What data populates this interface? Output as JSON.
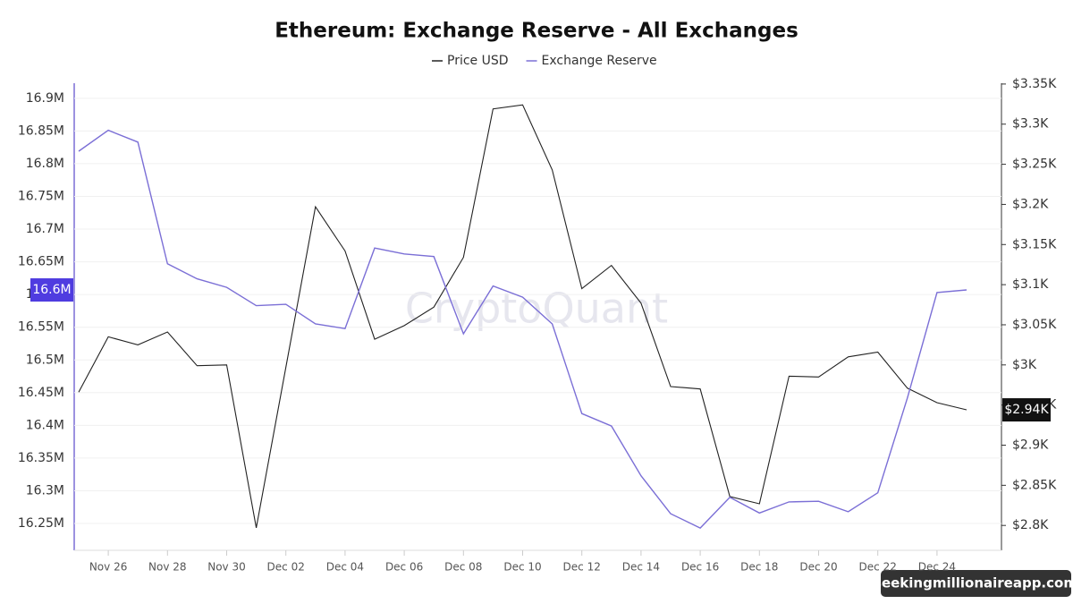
{
  "chart_data": {
    "type": "line",
    "title": "Ethereum: Exchange Reserve - All Exchanges",
    "watermark": "CryptoQuant",
    "categories": [
      null,
      "Nov 26",
      null,
      "Nov 28",
      null,
      "Nov 30",
      null,
      "Dec 02",
      null,
      "Dec 04",
      null,
      "Dec 06",
      null,
      "Dec 08",
      null,
      "Dec 10",
      null,
      "Dec 12",
      null,
      "Dec 14",
      null,
      "Dec 16",
      null,
      "Dec 18",
      null,
      "Dec 20",
      null,
      "Dec 22",
      null,
      "Dec 24",
      null
    ],
    "series": [
      {
        "name": "Price USD",
        "color": "#222222",
        "axis": "y2",
        "last_label": "$2.94K",
        "values": [
          2966,
          3035,
          3025,
          3041,
          2999,
          3000,
          2797,
          2997,
          3197,
          3142,
          3032,
          3049,
          3072,
          3134,
          3319,
          3324,
          3243,
          3095,
          3124,
          3077,
          2973,
          2970,
          2836,
          2827,
          2986,
          2985,
          3010,
          3016,
          2971,
          2953,
          2944
        ]
      },
      {
        "name": "Exchange Reserve",
        "color": "#7b6fd6",
        "last_label": "16.6M",
        "values": [
          16819000,
          16851000,
          16833000,
          16647000,
          16624000,
          16611000,
          16583000,
          16585000,
          16555000,
          16548000,
          16671000,
          16662000,
          16658000,
          16540000,
          16613000,
          16596000,
          16555000,
          16418000,
          16399000,
          16323000,
          16265000,
          16243000,
          16290000,
          16266000,
          16283000,
          16284000,
          16268000,
          16297000,
          16442000,
          16603000,
          16607000
        ]
      }
    ],
    "ylim": [
      16209000,
      16923000
    ],
    "yticks": [
      {
        "value": 16250000,
        "label": "16.25M"
      },
      {
        "value": 16300000,
        "label": "16.3M"
      },
      {
        "value": 16350000,
        "label": "16.35M"
      },
      {
        "value": 16400000,
        "label": "16.4M"
      },
      {
        "value": 16450000,
        "label": "16.45M"
      },
      {
        "value": 16500000,
        "label": "16.5M"
      },
      {
        "value": 16550000,
        "label": "16.55M"
      },
      {
        "value": 16600000,
        "label": "16.6M"
      },
      {
        "value": 16650000,
        "label": "16.65M"
      },
      {
        "value": 16700000,
        "label": "16.7M"
      },
      {
        "value": 16750000,
        "label": "16.75M"
      },
      {
        "value": 16800000,
        "label": "16.8M"
      },
      {
        "value": 16850000,
        "label": "16.85M"
      },
      {
        "value": 16900000,
        "label": "16.9M"
      }
    ],
    "y2lim": [
      2769,
      3351
    ],
    "y2ticks": [
      {
        "value": 2800,
        "label": "$2.8K"
      },
      {
        "value": 2850,
        "label": "$2.85K"
      },
      {
        "value": 2900,
        "label": "$2.9K"
      },
      {
        "value": 2950,
        "label": "$2.95K"
      },
      {
        "value": 3000,
        "label": "$3K"
      },
      {
        "value": 3050,
        "label": "$3.05K"
      },
      {
        "value": 3100,
        "label": "$3.1K"
      },
      {
        "value": 3150,
        "label": "$3.15K"
      },
      {
        "value": 3200,
        "label": "$3.2K"
      },
      {
        "value": 3250,
        "label": "$3.25K"
      },
      {
        "value": 3300,
        "label": "$3.3K"
      },
      {
        "value": 3350,
        "label": "$3.35K"
      }
    ],
    "grid": true
  },
  "footer": "seekingmillionaireapp.com"
}
